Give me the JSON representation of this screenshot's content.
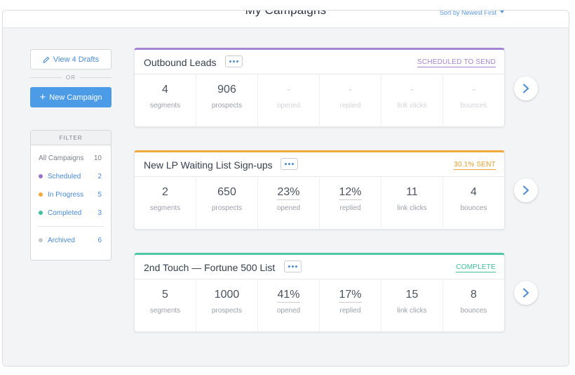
{
  "page": {
    "title": "My Campaigns",
    "sort_label": "Sort by Newest First"
  },
  "sidebar": {
    "drafts_label": "View 4 Drafts",
    "or_label": "OR",
    "new_campaign_label": "New Campaign",
    "filter": {
      "heading": "FILTER",
      "items": [
        {
          "label": "All Campaigns",
          "count": "10",
          "dot_color": ""
        },
        {
          "label": "Scheduled",
          "count": "2",
          "dot_color": "#9b72c9"
        },
        {
          "label": "In Progress",
          "count": "5",
          "dot_color": "#f2a93b"
        },
        {
          "label": "Completed",
          "count": "3",
          "dot_color": "#3fc1a0"
        },
        {
          "label": "Archived",
          "count": "6",
          "dot_color": "#c4c8ce"
        }
      ]
    }
  },
  "campaigns": [
    {
      "title": "Outbound Leads",
      "status": "SCHEDULED TO SEND",
      "accent": "#a585d3",
      "status_color": "#a585d3",
      "stats": [
        {
          "value": "4",
          "label": "segments"
        },
        {
          "value": "906",
          "label": "prospects"
        },
        {
          "value": "-",
          "label": "opened"
        },
        {
          "value": "-",
          "label": "replied"
        },
        {
          "value": "-",
          "label": "link clicks"
        },
        {
          "value": "-",
          "label": "bounces"
        }
      ]
    },
    {
      "title": "New LP Waiting List Sign-ups",
      "status": "30.1% SENT",
      "accent": "#f2a93b",
      "status_color": "#e9a030",
      "stats": [
        {
          "value": "2",
          "label": "segments"
        },
        {
          "value": "650",
          "label": "prospects"
        },
        {
          "value": "23%",
          "label": "opened"
        },
        {
          "value": "12%",
          "label": "replied"
        },
        {
          "value": "11",
          "label": "link clicks"
        },
        {
          "value": "4",
          "label": "bounces"
        }
      ]
    },
    {
      "title": "2nd Touch — Fortune 500 List",
      "status": "COMPLETE",
      "accent": "#4fc7a6",
      "status_color": "#3fbf9c",
      "stats": [
        {
          "value": "5",
          "label": "segments"
        },
        {
          "value": "1000",
          "label": "prospects"
        },
        {
          "value": "41%",
          "label": "opened"
        },
        {
          "value": "17%",
          "label": "replied"
        },
        {
          "value": "15",
          "label": "link clicks"
        },
        {
          "value": "8",
          "label": "bounces"
        }
      ]
    }
  ],
  "icons": {
    "draft": "pencil-icon",
    "new": "plus-icon",
    "more": "ellipsis-icon",
    "go": "chevron-right-icon"
  },
  "colors": {
    "link": "#4a8bd4",
    "primary_button": "#4b9be6"
  }
}
